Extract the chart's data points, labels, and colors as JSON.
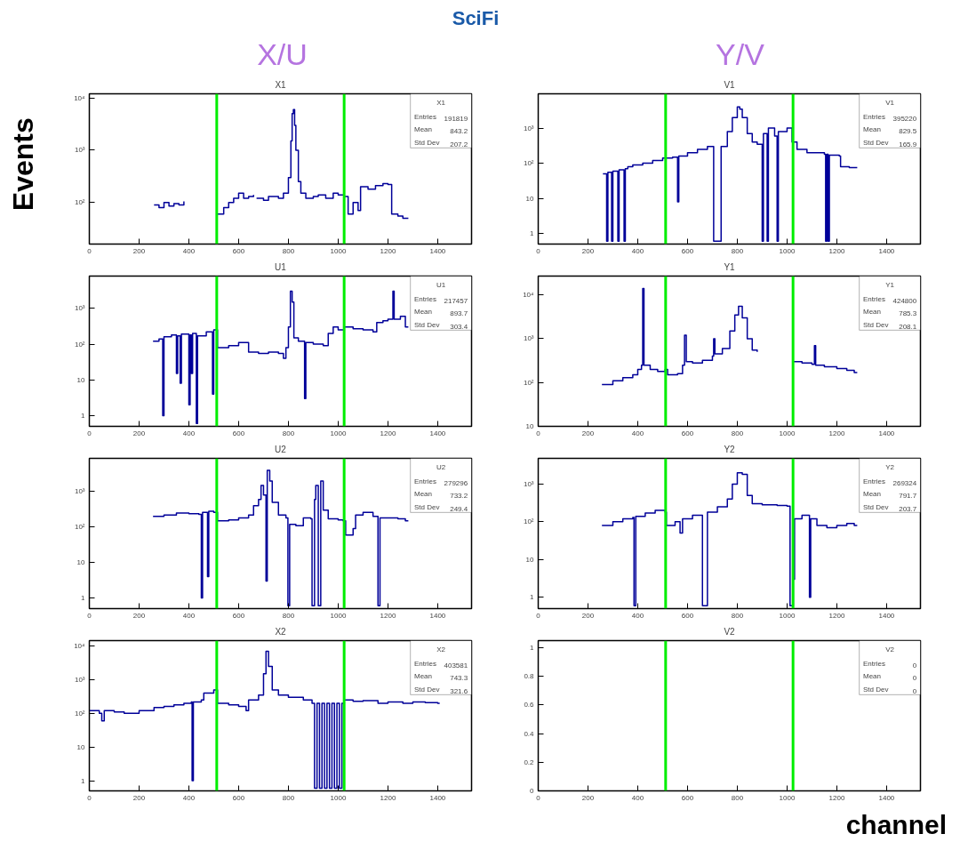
{
  "chart_data": [
    {
      "type": "other",
      "title": "SciFi",
      "annotations": [
        "X/U",
        "Y/V"
      ],
      "ylabel": "Events",
      "xlabel": "channel"
    },
    {
      "type": "step",
      "title": "X1",
      "log": true,
      "color": "#000099",
      "xlim": [
        0,
        1536
      ],
      "xticks": [
        0,
        200,
        400,
        600,
        800,
        1000,
        1200,
        1400
      ],
      "ylim": [
        16,
        12000
      ],
      "yticks": [
        {
          "value": 100,
          "label": "10²"
        },
        {
          "value": 1000,
          "label": "10³"
        },
        {
          "value": 10000,
          "label": "10⁴"
        }
      ],
      "x": [
        260,
        280,
        300,
        320,
        340,
        360,
        380,
        390,
        515,
        540,
        560,
        580,
        600,
        620,
        640,
        660,
        665,
        672,
        700,
        720,
        760,
        780,
        800,
        810,
        815,
        820,
        825,
        830,
        840,
        850,
        870,
        900,
        920,
        950,
        980,
        1000,
        1024,
        1040,
        1060,
        1080,
        1090,
        1120,
        1150,
        1180,
        1200,
        1215,
        1240,
        1260,
        1282
      ],
      "values": [
        90,
        80,
        100,
        85,
        95,
        90,
        105,
        null,
        60,
        80,
        100,
        120,
        150,
        120,
        130,
        140,
        null,
        120,
        110,
        130,
        120,
        150,
        300,
        1500,
        5000,
        6000,
        3000,
        1000,
        250,
        150,
        120,
        130,
        140,
        120,
        150,
        140,
        130,
        60,
        100,
        70,
        200,
        180,
        210,
        230,
        220,
        60,
        55,
        50,
        50
      ],
      "ref_lines": [
        {
          "axis": "x",
          "value": 512,
          "color": "#00ee00"
        },
        {
          "axis": "x",
          "value": 1024,
          "color": "#00ee00"
        }
      ],
      "annotations": [
        "X1",
        "Entries",
        "191819",
        "Mean",
        "843.2",
        "Std Dev",
        "207.2"
      ]
    },
    {
      "type": "step",
      "title": "V1",
      "log": true,
      "color": "#000099",
      "xlim": [
        0,
        1536
      ],
      "xticks": [
        0,
        200,
        400,
        600,
        800,
        1000,
        1200,
        1400
      ],
      "ylim": [
        0.5,
        9500
      ],
      "yticks": [
        1,
        10,
        {
          "value": 100,
          "label": "10²"
        },
        {
          "value": 1000,
          "label": "10³"
        }
      ],
      "x": [
        260,
        275,
        280,
        295,
        300,
        320,
        325,
        345,
        350,
        360,
        380,
        420,
        460,
        500,
        540,
        560,
        565,
        600,
        640,
        680,
        705,
        735,
        760,
        780,
        800,
        810,
        820,
        840,
        860,
        880,
        900,
        905,
        920,
        925,
        950,
        960,
        965,
        1000,
        1020,
        1040,
        1080,
        1120,
        1150,
        1155,
        1160,
        1165,
        1170,
        1210,
        1215,
        1250,
        1282
      ],
      "values": [
        50,
        0.6,
        55,
        0.6,
        60,
        0.6,
        65,
        0.6,
        70,
        80,
        90,
        100,
        120,
        140,
        150,
        8,
        160,
        200,
        250,
        300,
        0.6,
        300,
        800,
        2000,
        4000,
        3500,
        2000,
        700,
        400,
        350,
        0.6,
        700,
        0.6,
        1000,
        600,
        0.6,
        800,
        1000,
        400,
        250,
        200,
        200,
        180,
        0.6,
        180,
        0.6,
        170,
        160,
        80,
        75,
        75
      ],
      "ref_lines": [
        {
          "axis": "x",
          "value": 512,
          "color": "#00ee00"
        },
        {
          "axis": "x",
          "value": 1024,
          "color": "#00ee00"
        }
      ],
      "annotations": [
        "V1",
        "Entries",
        "395220",
        "Mean",
        "829.5",
        "Std Dev",
        "165.9"
      ]
    },
    {
      "type": "step",
      "title": "U1",
      "log": true,
      "color": "#000099",
      "xlim": [
        0,
        1536
      ],
      "xticks": [
        0,
        200,
        400,
        600,
        800,
        1000,
        1200,
        1400
      ],
      "ylim": [
        0.5,
        8000
      ],
      "yticks": [
        1,
        10,
        {
          "value": 100,
          "label": "10²"
        },
        {
          "value": 1000,
          "label": "10³"
        }
      ],
      "x": [
        256,
        280,
        295,
        300,
        330,
        350,
        355,
        365,
        370,
        400,
        405,
        410,
        415,
        430,
        435,
        470,
        495,
        500,
        515,
        560,
        600,
        640,
        680,
        720,
        760,
        780,
        790,
        800,
        808,
        815,
        822,
        840,
        865,
        870,
        900,
        940,
        960,
        980,
        1000,
        1024,
        1060,
        1100,
        1140,
        1155,
        1180,
        1200,
        1220,
        1225,
        1250,
        1270,
        1282
      ],
      "values": [
        120,
        140,
        1,
        160,
        180,
        15,
        170,
        8,
        190,
        2,
        180,
        15,
        200,
        0.6,
        170,
        220,
        4,
        250,
        80,
        90,
        110,
        60,
        55,
        60,
        55,
        40,
        80,
        300,
        3000,
        1500,
        150,
        120,
        3,
        110,
        100,
        90,
        200,
        300,
        250,
        300,
        270,
        250,
        220,
        400,
        450,
        500,
        3000,
        500,
        600,
        300,
        300
      ],
      "ref_lines": [
        {
          "axis": "x",
          "value": 512,
          "color": "#00ee00"
        },
        {
          "axis": "x",
          "value": 1024,
          "color": "#00ee00"
        }
      ],
      "annotations": [
        "U1",
        "Entries",
        "217457",
        "Mean",
        "893.7",
        "Std Dev",
        "303.4"
      ]
    },
    {
      "type": "step",
      "title": "Y1",
      "log": true,
      "color": "#000099",
      "xlim": [
        0,
        1536
      ],
      "xticks": [
        0,
        200,
        400,
        600,
        800,
        1000,
        1200,
        1400
      ],
      "ylim": [
        10,
        27000
      ],
      "yticks": [
        10,
        {
          "value": 100,
          "label": "10²"
        },
        {
          "value": 1000,
          "label": "10³"
        },
        {
          "value": 10000,
          "label": "10⁴"
        }
      ],
      "x": [
        256,
        300,
        340,
        380,
        400,
        415,
        420,
        425,
        450,
        480,
        510,
        520,
        560,
        580,
        588,
        595,
        620,
        660,
        700,
        705,
        710,
        740,
        770,
        790,
        805,
        820,
        840,
        860,
        880,
        897,
        1024,
        1060,
        1100,
        1110,
        1115,
        1150,
        1200,
        1240,
        1270,
        1282
      ],
      "values": [
        90,
        110,
        130,
        150,
        200,
        250,
        14000,
        250,
        200,
        180,
        200,
        150,
        160,
        250,
        1200,
        300,
        280,
        320,
        400,
        1000,
        450,
        600,
        1500,
        3500,
        5500,
        3000,
        1000,
        550,
        500,
        null,
        300,
        280,
        260,
        700,
        250,
        230,
        210,
        190,
        170,
        170
      ],
      "ref_lines": [
        {
          "axis": "x",
          "value": 512,
          "color": "#00ee00"
        },
        {
          "axis": "x",
          "value": 1024,
          "color": "#00ee00"
        }
      ],
      "annotations": [
        "Y1",
        "Entries",
        "424800",
        "Mean",
        "785.3",
        "Std Dev",
        "208.1"
      ]
    },
    {
      "type": "step",
      "title": "U2",
      "log": true,
      "color": "#000099",
      "xlim": [
        0,
        1536
      ],
      "xticks": [
        0,
        200,
        400,
        600,
        800,
        1000,
        1200,
        1400
      ],
      "ylim": [
        0.5,
        8700
      ],
      "yticks": [
        1,
        10,
        {
          "value": 100,
          "label": "10²"
        },
        {
          "value": 1000,
          "label": "10³"
        }
      ],
      "x": [
        256,
        300,
        350,
        400,
        440,
        450,
        455,
        475,
        480,
        500,
        515,
        560,
        600,
        640,
        660,
        680,
        690,
        700,
        710,
        715,
        725,
        735,
        760,
        790,
        798,
        805,
        830,
        860,
        890,
        895,
        905,
        910,
        920,
        930,
        940,
        960,
        1000,
        1020,
        1030,
        1060,
        1070,
        1100,
        1140,
        1160,
        1168,
        1200,
        1240,
        1270,
        1282
      ],
      "values": [
        200,
        220,
        250,
        240,
        230,
        1,
        260,
        4,
        280,
        260,
        150,
        160,
        180,
        220,
        400,
        600,
        1500,
        800,
        3,
        4000,
        2000,
        500,
        220,
        180,
        0.6,
        120,
        110,
        180,
        170,
        0.6,
        600,
        1500,
        0.6,
        2000,
        300,
        170,
        160,
        150,
        60,
        90,
        220,
        260,
        200,
        0.6,
        180,
        180,
        170,
        150,
        150
      ],
      "ref_lines": [
        {
          "axis": "x",
          "value": 512,
          "color": "#00ee00"
        },
        {
          "axis": "x",
          "value": 1024,
          "color": "#00ee00"
        }
      ],
      "annotations": [
        "U2",
        "Entries",
        "279296",
        "Mean",
        "733.2",
        "Std Dev",
        "249.4"
      ]
    },
    {
      "type": "step",
      "title": "Y2",
      "log": true,
      "color": "#000099",
      "xlim": [
        0,
        1536
      ],
      "xticks": [
        0,
        200,
        400,
        600,
        800,
        1000,
        1200,
        1400
      ],
      "ylim": [
        0.5,
        4800
      ],
      "yticks": [
        1,
        10,
        {
          "value": 100,
          "label": "10²"
        },
        {
          "value": 1000,
          "label": "10³"
        }
      ],
      "x": [
        256,
        300,
        340,
        380,
        385,
        392,
        430,
        470,
        510,
        515,
        550,
        570,
        580,
        620,
        660,
        680,
        720,
        760,
        780,
        800,
        820,
        840,
        860,
        900,
        960,
        1000,
        1012,
        1025,
        1030,
        1060,
        1090,
        1095,
        1120,
        1160,
        1200,
        1240,
        1270,
        1282
      ],
      "values": [
        80,
        100,
        120,
        130,
        0.6,
        140,
        170,
        200,
        180,
        80,
        100,
        50,
        120,
        150,
        0.6,
        180,
        250,
        400,
        1000,
        2000,
        1800,
        500,
        300,
        280,
        270,
        260,
        0.6,
        3,
        120,
        150,
        1,
        120,
        80,
        70,
        80,
        90,
        80,
        80
      ],
      "ref_lines": [
        {
          "axis": "x",
          "value": 512,
          "color": "#00ee00"
        },
        {
          "axis": "x",
          "value": 1024,
          "color": "#00ee00"
        }
      ],
      "annotations": [
        "Y2",
        "Entries",
        "269324",
        "Mean",
        "791.7",
        "Std Dev",
        "203.7"
      ]
    },
    {
      "type": "step",
      "title": "X2",
      "log": true,
      "color": "#000099",
      "xlim": [
        0,
        1536
      ],
      "xticks": [
        0,
        200,
        400,
        600,
        800,
        1000,
        1200,
        1400
      ],
      "ylim": [
        0.5,
        14500
      ],
      "yticks": [
        1,
        10,
        {
          "value": 100,
          "label": "10²"
        },
        {
          "value": 1000,
          "label": "10³"
        },
        {
          "value": 10000,
          "label": "10⁴"
        }
      ],
      "x": [
        0,
        40,
        50,
        60,
        100,
        140,
        200,
        260,
        300,
        340,
        380,
        410,
        413,
        418,
        450,
        460,
        500,
        515,
        560,
        600,
        630,
        640,
        680,
        700,
        710,
        720,
        735,
        760,
        800,
        860,
        895,
        905,
        915,
        925,
        935,
        945,
        955,
        965,
        975,
        985,
        995,
        1005,
        1015,
        1024,
        1060,
        1100,
        1160,
        1200,
        1260,
        1300,
        1350,
        1400,
        1408
      ],
      "values": [
        120,
        100,
        60,
        120,
        110,
        100,
        120,
        150,
        160,
        180,
        200,
        220,
        1,
        220,
        250,
        400,
        500,
        200,
        180,
        160,
        120,
        250,
        350,
        1500,
        7000,
        2500,
        500,
        350,
        300,
        250,
        200,
        0.6,
        200,
        0.6,
        200,
        0.6,
        200,
        0.6,
        200,
        0.6,
        200,
        0.6,
        200,
        250,
        230,
        240,
        200,
        220,
        200,
        220,
        210,
        200,
        200
      ],
      "ref_lines": [
        {
          "axis": "x",
          "value": 512,
          "color": "#00ee00"
        },
        {
          "axis": "x",
          "value": 1024,
          "color": "#00ee00"
        }
      ],
      "annotations": [
        "X2",
        "Entries",
        "403581",
        "Mean",
        "743.3",
        "Std Dev",
        "321.6"
      ]
    },
    {
      "type": "step",
      "title": "V2",
      "xlim": [
        0,
        1536
      ],
      "xticks": [
        0,
        200,
        400,
        600,
        800,
        1000,
        1200,
        1400
      ],
      "ylim": [
        0,
        1.05
      ],
      "yticks": [
        0,
        0.2,
        0.4,
        0.6,
        0.8,
        1
      ],
      "ref_lines": [
        {
          "axis": "x",
          "value": 512,
          "color": "#00ee00"
        },
        {
          "axis": "x",
          "value": 1024,
          "color": "#00ee00"
        }
      ],
      "annotations": [
        "V2",
        "Entries",
        "0",
        "Mean",
        "0",
        "Std Dev",
        "0"
      ]
    }
  ]
}
